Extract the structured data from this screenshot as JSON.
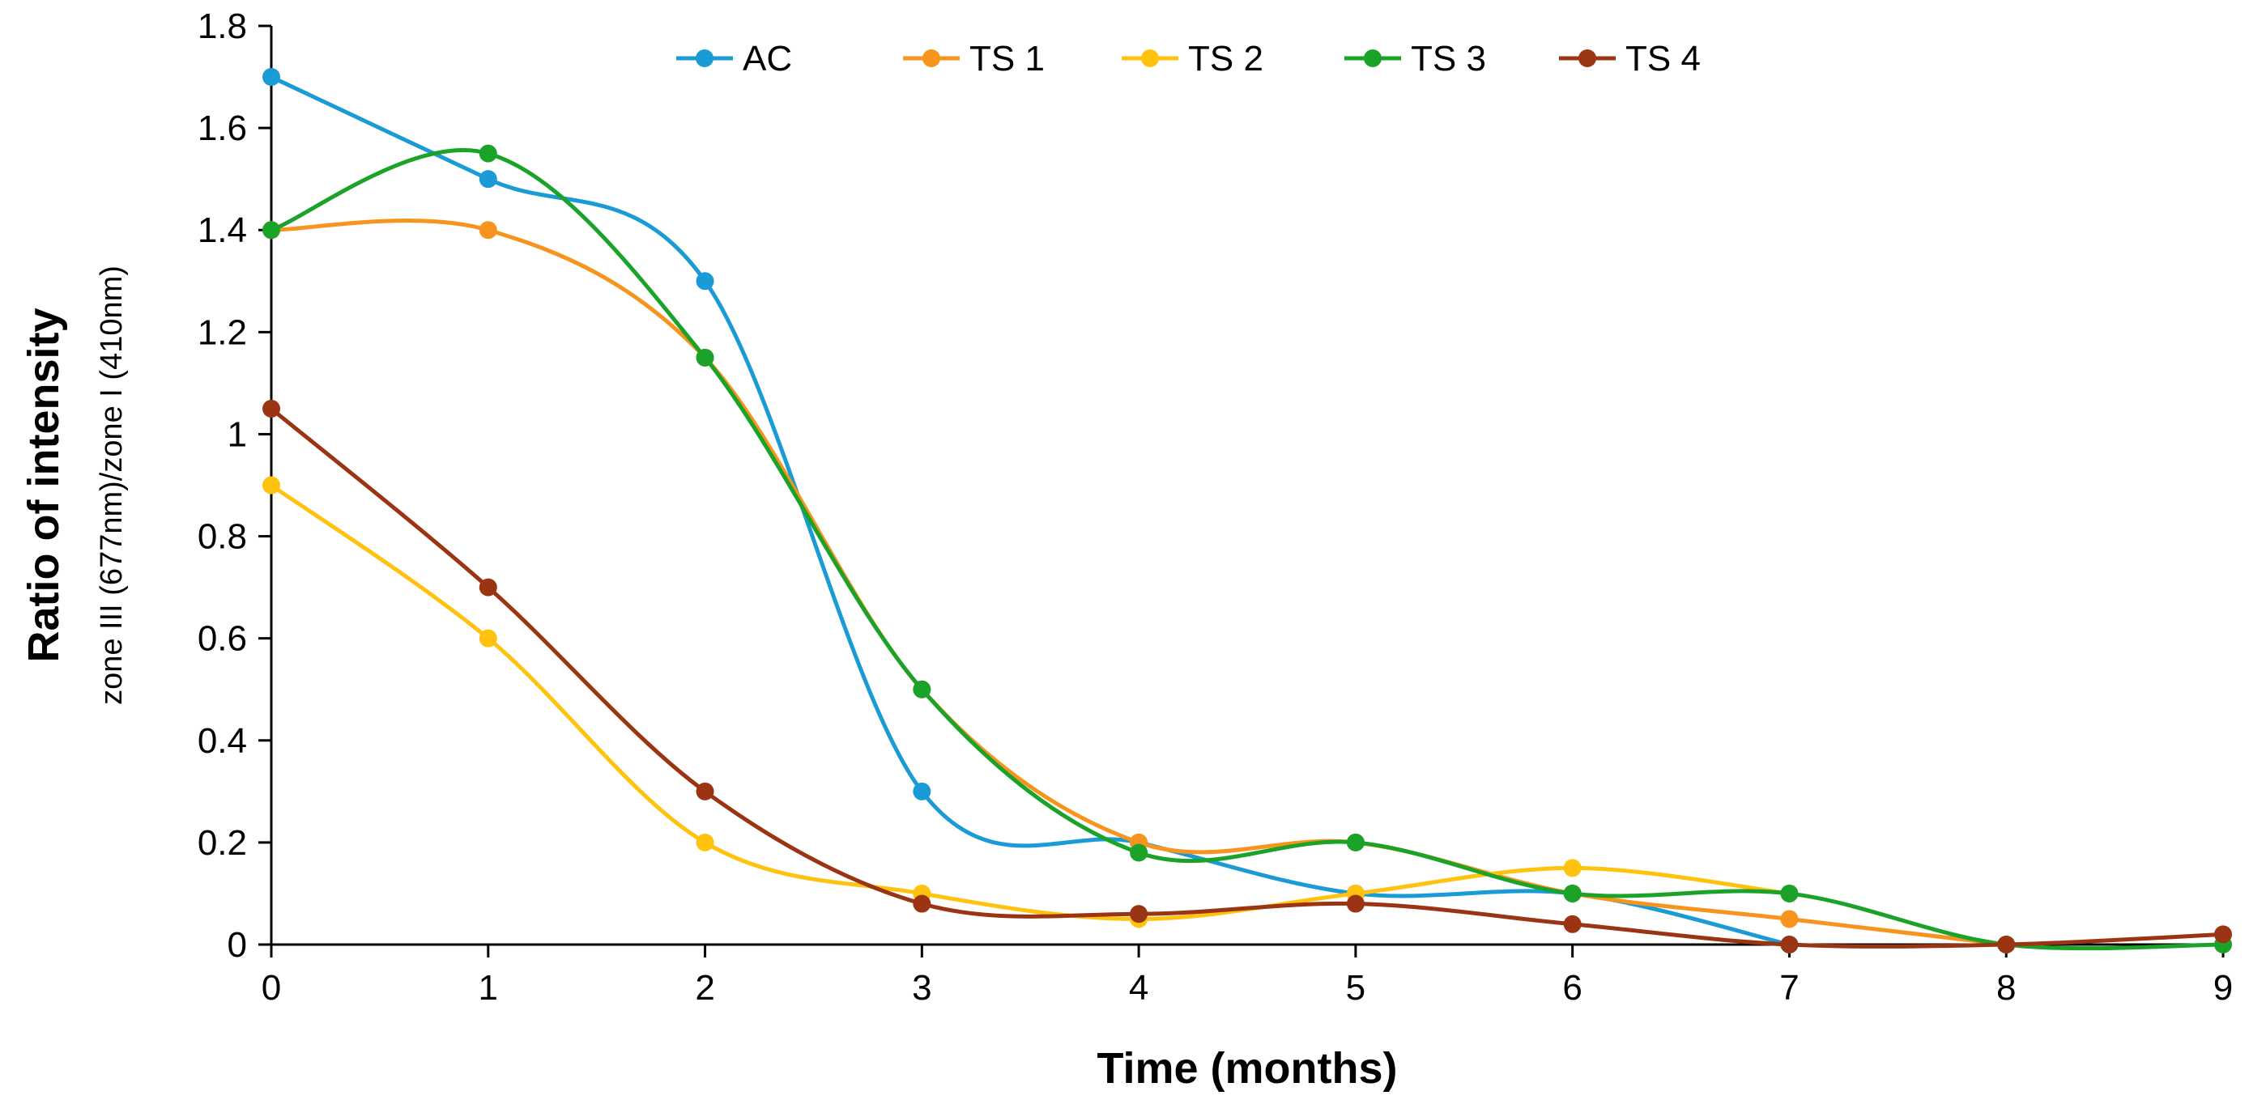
{
  "chart_data": {
    "type": "line",
    "title": "",
    "xlabel": "Time (months)",
    "ylabel": "Ratio of intensity",
    "ylabel_sub": "zone III (677nm)/zone I (410nm)",
    "xlim": [
      0,
      9
    ],
    "ylim": [
      0,
      1.8
    ],
    "x_ticks": [
      "0",
      "1",
      "2",
      "3",
      "4",
      "5",
      "6",
      "7",
      "8",
      "9"
    ],
    "y_ticks": [
      "0",
      "0.2",
      "0.4",
      "0.6",
      "0.8",
      "1",
      "1.2",
      "1.4",
      "1.6",
      "1.8"
    ],
    "grid": false,
    "legend_position": "top",
    "series": [
      {
        "name": "AC",
        "color": "#1a9bd6",
        "x": [
          0,
          1,
          2,
          3,
          4,
          5,
          6,
          7
        ],
        "values": [
          1.7,
          1.5,
          1.3,
          0.3,
          0.2,
          0.1,
          0.1,
          0
        ]
      },
      {
        "name": "TS 1",
        "color": "#f7941d",
        "x": [
          0,
          1,
          2,
          3,
          4,
          5,
          6,
          7,
          8
        ],
        "values": [
          1.4,
          1.4,
          1.15,
          0.5,
          0.2,
          0.2,
          0.1,
          0.05,
          0
        ]
      },
      {
        "name": "TS 2",
        "color": "#ffc20e",
        "x": [
          0,
          1,
          2,
          3,
          4,
          5,
          6,
          7
        ],
        "values": [
          0.9,
          0.6,
          0.2,
          0.1,
          0.05,
          0.1,
          0.15,
          0.1
        ]
      },
      {
        "name": "TS 3",
        "color": "#1aa328",
        "x": [
          0,
          1,
          2,
          3,
          4,
          5,
          6,
          7,
          8,
          9
        ],
        "values": [
          1.4,
          1.55,
          1.15,
          0.5,
          0.18,
          0.2,
          0.1,
          0.1,
          0,
          0
        ]
      },
      {
        "name": "TS 4",
        "color": "#9b3412",
        "x": [
          0,
          1,
          2,
          3,
          4,
          5,
          6,
          7,
          8,
          9
        ],
        "values": [
          1.05,
          0.7,
          0.3,
          0.08,
          0.06,
          0.08,
          0.04,
          0,
          0,
          0.02
        ]
      }
    ]
  }
}
